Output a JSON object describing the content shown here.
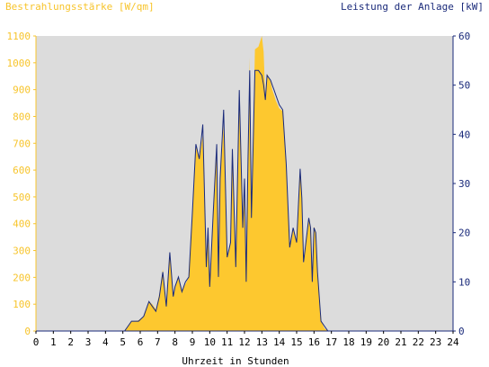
{
  "chart_data": {
    "type": "area",
    "left_axis_label": "Bestrahlungsstärke [W/qm]",
    "right_axis_label": "Leistung der Anlage [kW]",
    "xlabel": "Uhrzeit in Stunden",
    "xlim": [
      0,
      24
    ],
    "ylim_left": [
      0,
      1100
    ],
    "ylim_right": [
      0,
      60
    ],
    "x_ticks": [
      "0",
      "1",
      "2",
      "3",
      "4",
      "5",
      "6",
      "7",
      "8",
      "9",
      "10",
      "11",
      "12",
      "13",
      "14",
      "15",
      "16",
      "17",
      "18",
      "19",
      "20",
      "21",
      "22",
      "23",
      "24"
    ],
    "y_ticks_left": [
      "0",
      "100",
      "200",
      "300",
      "400",
      "500",
      "600",
      "700",
      "800",
      "900",
      "1000",
      "1100"
    ],
    "y_ticks_right": [
      "0",
      "10",
      "20",
      "30",
      "40",
      "50",
      "60"
    ],
    "series": [
      {
        "axis": "left",
        "x": [
          0,
          5.1,
          5.3,
          5.5,
          5.9,
          6.2,
          6.5,
          6.7,
          6.9,
          7.1,
          7.3,
          7.5,
          7.7,
          7.9,
          8.0,
          8.2,
          8.4,
          8.6,
          8.8,
          9.0,
          9.2,
          9.4,
          9.6,
          9.8,
          9.9,
          10.0,
          10.2,
          10.4,
          10.5,
          10.6,
          10.8,
          11.0,
          11.2,
          11.3,
          11.5,
          11.7,
          11.9,
          12.0,
          12.1,
          12.2,
          12.3,
          12.4,
          12.6,
          12.8,
          13.0,
          13.1,
          13.2,
          13.3,
          13.5,
          13.6,
          13.7,
          13.8,
          14.0,
          14.2,
          14.4,
          14.6,
          14.8,
          15.0,
          15.2,
          15.3,
          15.4,
          15.6,
          15.7,
          15.8,
          15.9,
          16.0,
          16.1,
          16.2,
          16.4,
          16.6,
          16.8,
          17.0,
          17.2,
          17.4,
          17.6,
          17.8,
          18.0,
          18.2,
          18.5,
          19.0,
          19.5,
          20.0,
          20.4,
          24
        ],
        "values": [
          0,
          0,
          20,
          35,
          40,
          55,
          110,
          100,
          80,
          140,
          230,
          100,
          290,
          130,
          160,
          200,
          150,
          175,
          200,
          430,
          690,
          640,
          730,
          230,
          380,
          160,
          440,
          700,
          200,
          560,
          770,
          280,
          330,
          680,
          230,
          900,
          380,
          560,
          190,
          640,
          1020,
          430,
          1050,
          1060,
          1100,
          1040,
          860,
          960,
          930,
          900,
          880,
          860,
          830,
          820,
          620,
          310,
          380,
          330,
          600,
          480,
          250,
          360,
          420,
          380,
          190,
          390,
          370,
          220,
          40,
          10,
          0,
          0,
          0,
          0,
          0,
          0,
          0,
          0,
          0,
          0,
          0,
          0,
          0,
          0
        ]
      },
      {
        "axis": "right",
        "x": [
          0,
          5.1,
          5.3,
          5.5,
          5.9,
          6.2,
          6.5,
          6.7,
          6.9,
          7.1,
          7.3,
          7.5,
          7.7,
          7.9,
          8.0,
          8.2,
          8.4,
          8.6,
          8.8,
          9.0,
          9.2,
          9.4,
          9.6,
          9.8,
          9.9,
          10.0,
          10.2,
          10.4,
          10.5,
          10.6,
          10.8,
          11.0,
          11.2,
          11.3,
          11.5,
          11.7,
          11.9,
          12.0,
          12.1,
          12.2,
          12.3,
          12.4,
          12.6,
          12.8,
          13.0,
          13.1,
          13.2,
          13.3,
          13.5,
          13.6,
          13.7,
          13.8,
          14.0,
          14.2,
          14.4,
          14.6,
          14.8,
          15.0,
          15.2,
          15.3,
          15.4,
          15.6,
          15.7,
          15.8,
          15.9,
          16.0,
          16.1,
          16.2,
          16.4,
          16.6,
          16.8,
          17.0,
          17.2,
          17.4,
          17.6,
          17.8,
          18.0,
          18.2,
          18.5,
          19.0,
          19.5,
          20.0,
          20.4,
          24
        ],
        "values": [
          0,
          0,
          1,
          2,
          2,
          3,
          6,
          5,
          4,
          7,
          12,
          5,
          16,
          7,
          9,
          11,
          8,
          10,
          11,
          24,
          38,
          35,
          42,
          13,
          21,
          9,
          24,
          38,
          11,
          31,
          45,
          15,
          18,
          37,
          13,
          49,
          21,
          31,
          10,
          35,
          53,
          23,
          53,
          53,
          52,
          50,
          47,
          52,
          51,
          50,
          49,
          48,
          46,
          45,
          34,
          17,
          21,
          18,
          33,
          27,
          14,
          20,
          23,
          21,
          10,
          21,
          20,
          12,
          2,
          1,
          0,
          0,
          0,
          0,
          0,
          0,
          0,
          0,
          0,
          0,
          0,
          0,
          0,
          0
        ]
      }
    ],
    "colors": {
      "background": "#ffffff",
      "plot_area": "#dcdcdc",
      "irradiance_fill": "#fdc82f",
      "power_line": "#1a2a7a",
      "left_axis": "#f7c42b",
      "right_axis": "#1a2a7a",
      "x_axis": "#000000"
    }
  }
}
